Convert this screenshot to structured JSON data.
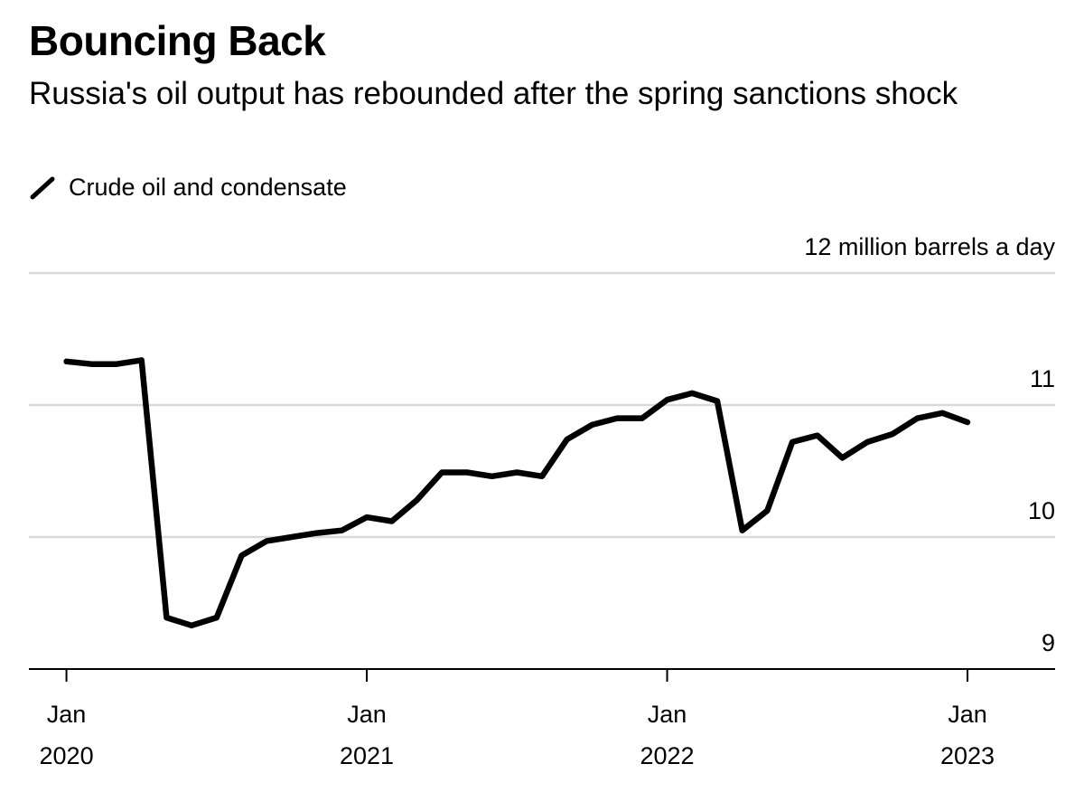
{
  "chart_data": {
    "type": "line",
    "title": "Bouncing Back",
    "subtitle": "Russia's oil output has rebounded after the spring sanctions shock",
    "ylabel": "12 million barrels a day",
    "xlabel": "",
    "ylim": [
      9,
      12
    ],
    "yticks": [
      {
        "value": 12,
        "label": "12 million barrels a day"
      },
      {
        "value": 11,
        "label": "11"
      },
      {
        "value": 10,
        "label": "10"
      },
      {
        "value": 9,
        "label": "9"
      }
    ],
    "xticks": [
      {
        "value": 0,
        "line1": "Jan",
        "line2": "2020"
      },
      {
        "value": 12,
        "line1": "Jan",
        "line2": "2021"
      },
      {
        "value": 24,
        "line1": "Jan",
        "line2": "2022"
      },
      {
        "value": 36,
        "line1": "Jan",
        "line2": "2023"
      }
    ],
    "x_unit": "months since Jan 2020",
    "xlim": [
      -1.5,
      39.5
    ],
    "series": [
      {
        "name": "Crude oil and condensate",
        "color": "#000000",
        "x": [
          0,
          1,
          2,
          3,
          4,
          5,
          6,
          7,
          8,
          9,
          10,
          11,
          12,
          13,
          14,
          15,
          16,
          17,
          18,
          19,
          20,
          21,
          22,
          23,
          24,
          25,
          26,
          27,
          28,
          29,
          30,
          31,
          32,
          33,
          34,
          35,
          36,
          37
        ],
        "values": [
          11.33,
          11.31,
          11.31,
          11.34,
          9.39,
          9.33,
          9.39,
          9.86,
          9.97,
          10.0,
          10.03,
          10.05,
          10.15,
          10.12,
          10.28,
          10.49,
          10.49,
          10.46,
          10.49,
          10.46,
          10.74,
          10.85,
          10.9,
          10.9,
          11.04,
          11.09,
          11.03,
          10.05,
          10.2,
          10.72,
          10.77,
          10.6,
          10.72,
          10.78,
          10.9,
          10.94,
          10.87,
          null
        ]
      }
    ]
  }
}
